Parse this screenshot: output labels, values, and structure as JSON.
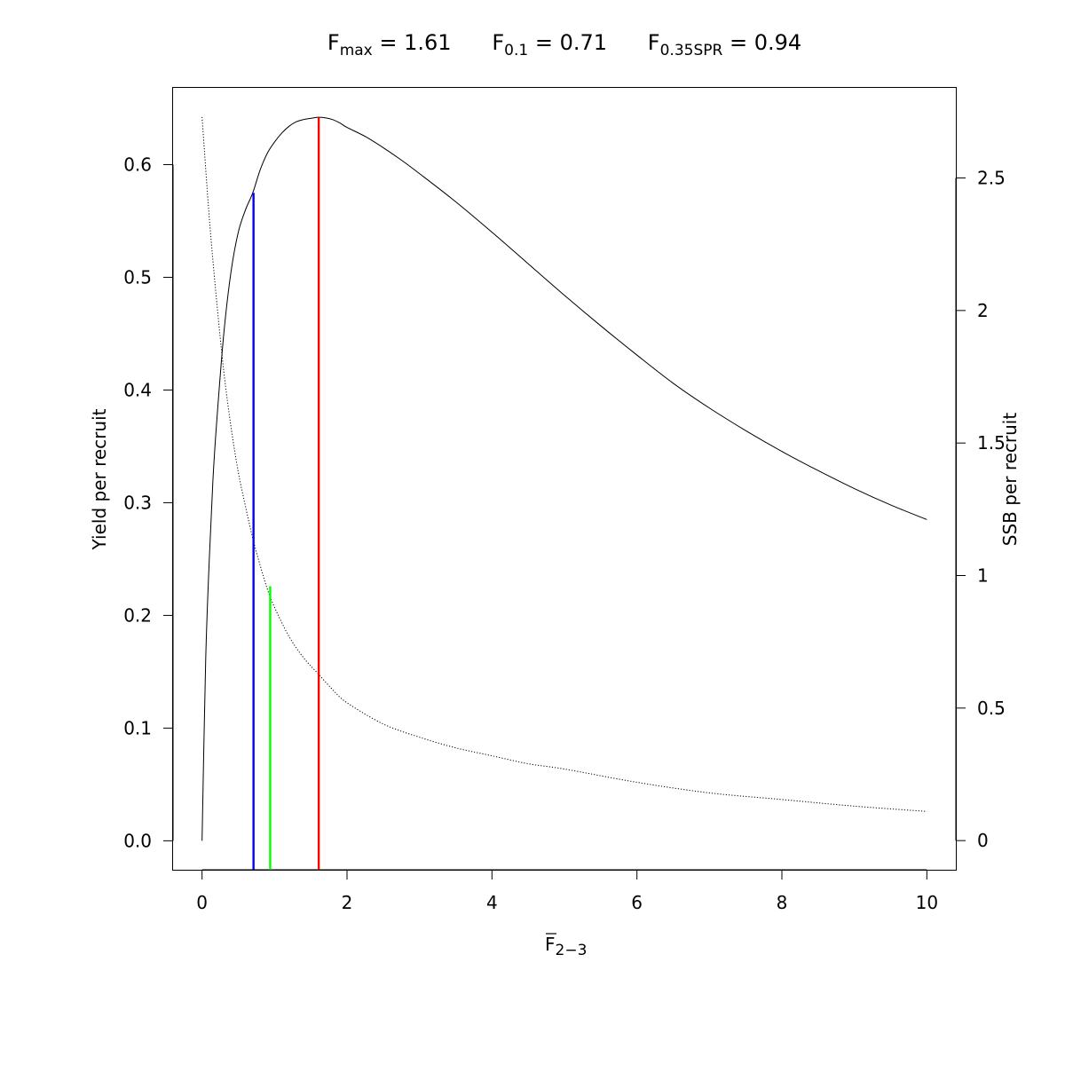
{
  "chart_data": {
    "type": "line",
    "title": {
      "fmax": {
        "symbol": "F",
        "sub": "max",
        "value": "1.61"
      },
      "f01": {
        "symbol": "F",
        "sub": "0.1",
        "value": "0.71"
      },
      "f035spr": {
        "symbol": "F",
        "sub": "0.35SPR",
        "value": "0.94"
      }
    },
    "xlabel": {
      "symbol": "F",
      "sub": "2−3",
      "overbar": true
    },
    "ylabel_left": "Yield per recruit",
    "ylabel_right": "SSB per recruit",
    "xlim": [
      -0.4,
      10.4
    ],
    "ylim_left": [
      -0.0257,
      0.6681
    ],
    "ylim_right": [
      -0.11,
      2.84
    ],
    "x_ticks": [
      0,
      2,
      4,
      6,
      8,
      10
    ],
    "x_tick_labels": [
      "0",
      "2",
      "4",
      "6",
      "8",
      "10"
    ],
    "y_left_ticks": [
      0.0,
      0.1,
      0.2,
      0.3,
      0.4,
      0.5,
      0.6
    ],
    "y_left_tick_labels": [
      "0.0",
      "0.1",
      "0.2",
      "0.3",
      "0.4",
      "0.5",
      "0.6"
    ],
    "y_right_ticks": [
      0,
      0.5,
      1,
      1.5,
      2,
      2.5
    ],
    "y_right_tick_labels": [
      "0",
      "0.5",
      "1",
      "1.5",
      "2",
      "2.5"
    ],
    "series": [
      {
        "axis": "left",
        "style": "solid",
        "color": "#000000",
        "x": [
          0,
          0.05,
          0.1,
          0.15,
          0.2,
          0.3,
          0.4,
          0.5,
          0.6,
          0.7,
          0.8,
          0.9,
          1.0,
          1.1,
          1.2,
          1.3,
          1.4,
          1.5,
          1.6,
          1.7,
          1.8,
          1.9,
          2.0,
          2.25,
          2.5,
          2.75,
          3.0,
          3.5,
          4.0,
          4.5,
          5.0,
          5.5,
          6.0,
          6.5,
          7.0,
          7.5,
          8.0,
          8.5,
          9.0,
          9.5,
          10.0
        ],
        "values": [
          0.0,
          0.16,
          0.25,
          0.32,
          0.37,
          0.45,
          0.505,
          0.54,
          0.56,
          0.575,
          0.595,
          0.61,
          0.62,
          0.628,
          0.634,
          0.638,
          0.64,
          0.641,
          0.642,
          0.6415,
          0.64,
          0.637,
          0.633,
          0.625,
          0.615,
          0.604,
          0.592,
          0.567,
          0.54,
          0.512,
          0.484,
          0.457,
          0.431,
          0.406,
          0.384,
          0.364,
          0.3455,
          0.3285,
          0.3125,
          0.298,
          0.285
        ]
      },
      {
        "axis": "right",
        "style": "dotted",
        "color": "#000000",
        "x": [
          0,
          0.1,
          0.2,
          0.3,
          0.4,
          0.5,
          0.6,
          0.7,
          0.8,
          0.9,
          1.0,
          1.2,
          1.4,
          1.6,
          1.8,
          2.0,
          2.5,
          3.0,
          3.5,
          4.0,
          4.5,
          5.0,
          6.0,
          7.0,
          8.0,
          9.0,
          10.0
        ],
        "values": [
          2.73,
          2.35,
          2.04,
          1.77,
          1.56,
          1.39,
          1.26,
          1.14,
          1.04,
          0.95,
          0.88,
          0.77,
          0.69,
          0.63,
          0.57,
          0.52,
          0.44,
          0.39,
          0.35,
          0.32,
          0.29,
          0.27,
          0.22,
          0.18,
          0.155,
          0.13,
          0.11
        ]
      }
    ],
    "reference_lines": [
      {
        "x": 0.71,
        "y_top": 0.575,
        "axis": "left",
        "color": "#0000ff"
      },
      {
        "x": 0.94,
        "y_top": 0.96,
        "axis": "right",
        "color": "#00ff00"
      },
      {
        "x": 1.61,
        "y_top": 0.642,
        "axis": "left",
        "color": "#ff0000"
      }
    ]
  }
}
